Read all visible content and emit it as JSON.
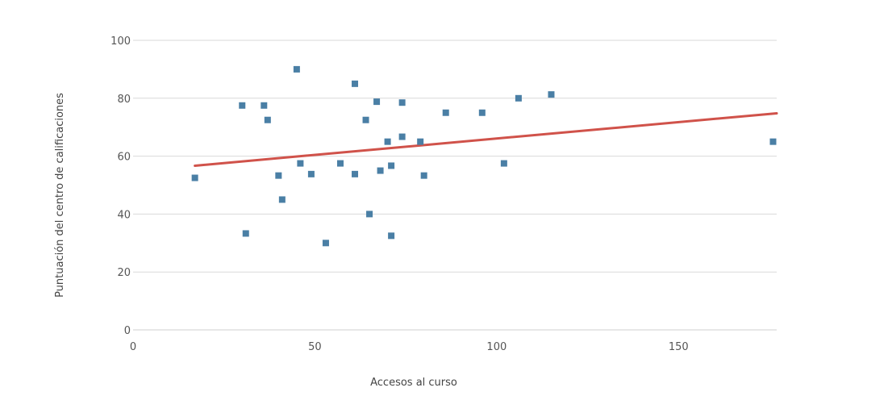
{
  "chart_data": {
    "type": "scatter",
    "title": "",
    "xlabel": "Accesos al curso",
    "ylabel": "Puntuación del centro de calificaciones",
    "xlim": [
      0,
      177
    ],
    "ylim": [
      0,
      100
    ],
    "x_ticks": [
      "0",
      "50",
      "100",
      "150"
    ],
    "y_ticks": [
      "0",
      "20",
      "40",
      "60",
      "80",
      "100"
    ],
    "grid": "horizontal",
    "legend": "none",
    "point_color": "#4a7fa5",
    "trend_color": "#d0524a",
    "points": [
      {
        "x": 17,
        "y": 52.5
      },
      {
        "x": 30,
        "y": 77.5
      },
      {
        "x": 31,
        "y": 33.3
      },
      {
        "x": 36,
        "y": 77.5
      },
      {
        "x": 37,
        "y": 72.5
      },
      {
        "x": 40,
        "y": 53.3
      },
      {
        "x": 41,
        "y": 45
      },
      {
        "x": 45,
        "y": 90
      },
      {
        "x": 46,
        "y": 57.5
      },
      {
        "x": 49,
        "y": 53.8
      },
      {
        "x": 53,
        "y": 30
      },
      {
        "x": 57,
        "y": 57.5
      },
      {
        "x": 61,
        "y": 85
      },
      {
        "x": 61,
        "y": 53.8
      },
      {
        "x": 64,
        "y": 72.5
      },
      {
        "x": 65,
        "y": 40
      },
      {
        "x": 67,
        "y": 78.8
      },
      {
        "x": 68,
        "y": 55
      },
      {
        "x": 70,
        "y": 65
      },
      {
        "x": 71,
        "y": 56.7
      },
      {
        "x": 71,
        "y": 32.5
      },
      {
        "x": 74,
        "y": 78.5
      },
      {
        "x": 74,
        "y": 66.7
      },
      {
        "x": 79,
        "y": 65
      },
      {
        "x": 80,
        "y": 53.3
      },
      {
        "x": 86,
        "y": 75
      },
      {
        "x": 96,
        "y": 75
      },
      {
        "x": 102,
        "y": 57.5
      },
      {
        "x": 106,
        "y": 80
      },
      {
        "x": 115,
        "y": 81.3
      },
      {
        "x": 176,
        "y": 65
      }
    ],
    "trendline": {
      "x": [
        17,
        177
      ],
      "y": [
        56.7,
        74.8
      ]
    }
  }
}
